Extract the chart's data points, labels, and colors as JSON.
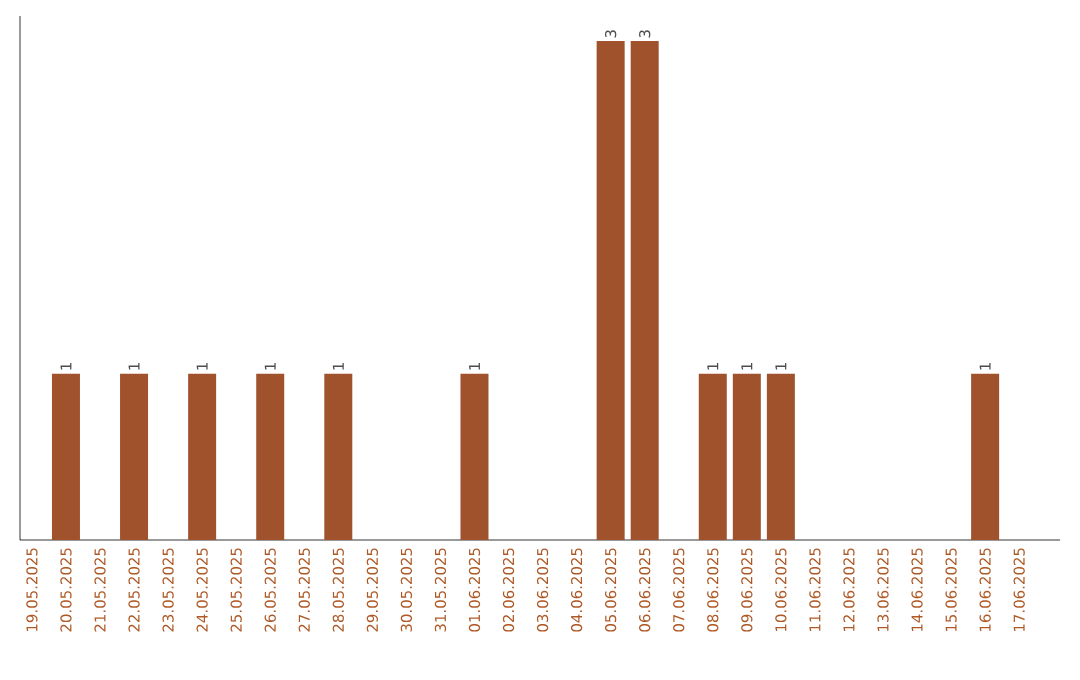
{
  "chart_data": {
    "type": "bar",
    "color": "#a0522d",
    "categories": [
      "19.05.2025",
      "20.05.2025",
      "21.05.2025",
      "22.05.2025",
      "23.05.2025",
      "24.05.2025",
      "25.05.2025",
      "26.05.2025",
      "27.05.2025",
      "28.05.2025",
      "29.05.2025",
      "30.05.2025",
      "31.05.2025",
      "01.06.2025",
      "02.06.2025",
      "03.06.2025",
      "04.06.2025",
      "05.06.2025",
      "06.06.2025",
      "07.06.2025",
      "08.06.2025",
      "09.06.2025",
      "10.06.2025",
      "11.06.2025",
      "12.06.2025",
      "13.06.2025",
      "14.06.2025",
      "15.06.2025",
      "16.06.2025",
      "17.06.2025"
    ],
    "values": [
      0,
      1,
      0,
      1,
      0,
      1,
      0,
      1,
      0,
      1,
      0,
      0,
      0,
      1,
      0,
      0,
      0,
      3,
      3,
      0,
      1,
      1,
      1,
      0,
      0,
      0,
      0,
      0,
      1,
      0
    ],
    "value_labels": [
      null,
      "1",
      null,
      "1",
      null,
      "1",
      null,
      "1",
      null,
      "1",
      null,
      null,
      null,
      "1",
      null,
      null,
      null,
      "3",
      "3",
      null,
      "1",
      "1",
      "1",
      null,
      null,
      null,
      null,
      null,
      "1",
      null
    ],
    "grid": false
  }
}
